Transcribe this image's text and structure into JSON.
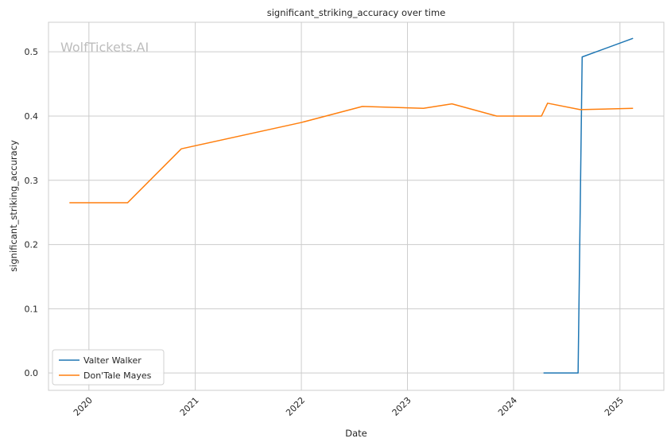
{
  "chart_data": {
    "type": "line",
    "title": "significant_striking_accuracy over time",
    "xlabel": "Date",
    "ylabel": "significant_striking_accuracy",
    "watermark": "WolfTickets.AI",
    "xlim": [
      "2019-08-15",
      "2025-06-01"
    ],
    "ylim": [
      -0.027,
      0.546
    ],
    "x_ticks": [
      "2020-01-01",
      "2021-01-01",
      "2022-01-01",
      "2023-01-01",
      "2024-01-01",
      "2025-01-01"
    ],
    "x_tick_labels": [
      "2020",
      "2021",
      "2022",
      "2023",
      "2024",
      "2025"
    ],
    "y_ticks": [
      0.0,
      0.1,
      0.2,
      0.3,
      0.4,
      0.5
    ],
    "y_tick_labels": [
      "0.0",
      "0.1",
      "0.2",
      "0.3",
      "0.4",
      "0.5"
    ],
    "grid": true,
    "legend_position": "bottom-left",
    "series": [
      {
        "name": "Valter Walker",
        "color": "#1f77b4",
        "points": [
          {
            "x": "2024-04-13",
            "y": 0.0
          },
          {
            "x": "2024-08-10",
            "y": 0.0
          },
          {
            "x": "2024-08-24",
            "y": 0.492
          },
          {
            "x": "2025-02-15",
            "y": 0.521
          }
        ]
      },
      {
        "name": "Don'Tale Mayes",
        "color": "#ff7f0e",
        "points": [
          {
            "x": "2019-10-26",
            "y": 0.265
          },
          {
            "x": "2020-05-13",
            "y": 0.265
          },
          {
            "x": "2020-11-14",
            "y": 0.349
          },
          {
            "x": "2022-01-01",
            "y": 0.39
          },
          {
            "x": "2022-07-30",
            "y": 0.415
          },
          {
            "x": "2023-02-25",
            "y": 0.412
          },
          {
            "x": "2023-06-03",
            "y": 0.419
          },
          {
            "x": "2023-11-04",
            "y": 0.4
          },
          {
            "x": "2024-04-06",
            "y": 0.4
          },
          {
            "x": "2024-04-27",
            "y": 0.42
          },
          {
            "x": "2024-08-17",
            "y": 0.41
          },
          {
            "x": "2025-02-15",
            "y": 0.412
          }
        ]
      }
    ]
  }
}
